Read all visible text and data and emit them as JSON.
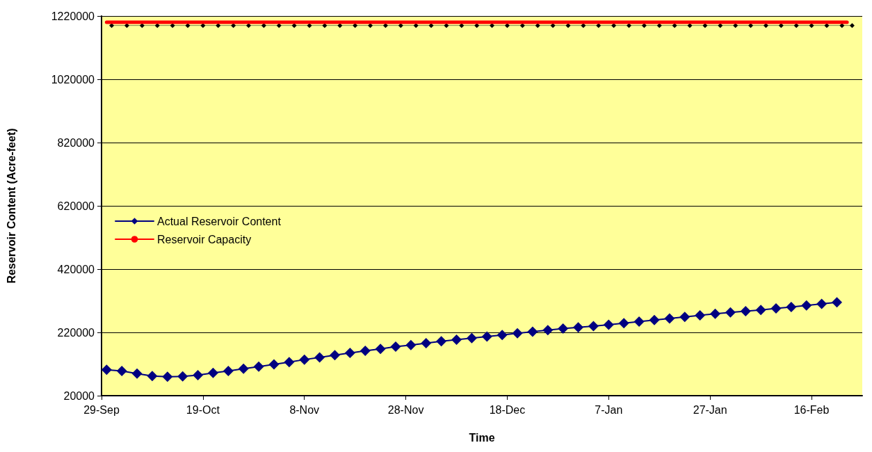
{
  "chart_data": {
    "type": "line",
    "xlabel": "Time",
    "ylabel": "Reservoir Content (Acre-feet)",
    "x": [
      "2000-09-30",
      "2000-10-03",
      "2000-10-06",
      "2000-10-09",
      "2000-10-12",
      "2000-10-15",
      "2000-10-18",
      "2000-10-21",
      "2000-10-24",
      "2000-10-27",
      "2000-10-30",
      "2000-11-02",
      "2000-11-05",
      "2000-11-08",
      "2000-11-11",
      "2000-11-14",
      "2000-11-17",
      "2000-11-20",
      "2000-11-23",
      "2000-11-26",
      "2000-11-29",
      "2000-12-02",
      "2000-12-05",
      "2000-12-08",
      "2000-12-11",
      "2000-12-14",
      "2000-12-17",
      "2000-12-20",
      "2000-12-23",
      "2000-12-26",
      "2000-12-29",
      "2001-01-01",
      "2001-01-04",
      "2001-01-07",
      "2001-01-10",
      "2001-01-13",
      "2001-01-16",
      "2001-01-19",
      "2001-01-22",
      "2001-01-25",
      "2001-01-28",
      "2001-01-31",
      "2001-02-03",
      "2001-02-06",
      "2001-02-09",
      "2001-02-12",
      "2001-02-15",
      "2001-02-18",
      "2001-02-21"
    ],
    "series": [
      {
        "name": "Actual Reservoir Content",
        "color": "#000080",
        "marker": "diamond",
        "values": [
          102000,
          98000,
          90000,
          82000,
          80000,
          81000,
          85000,
          92000,
          98000,
          105000,
          112000,
          119000,
          126000,
          134000,
          141000,
          148000,
          155000,
          162000,
          168000,
          175000,
          180000,
          186000,
          192000,
          197000,
          202000,
          207000,
          212000,
          217000,
          222000,
          227000,
          232000,
          236000,
          240000,
          244000,
          249000,
          254000,
          259000,
          264000,
          269000,
          274000,
          279000,
          283000,
          287000,
          291000,
          296000,
          300000,
          305000,
          310000,
          315000
        ]
      },
      {
        "name": "Reservoir Capacity",
        "color": "#ff0000",
        "marker": "none",
        "x": [
          "2000-09-30",
          "2001-02-23"
        ],
        "values": [
          1200000,
          1200000
        ]
      },
      {
        "color": "#000000",
        "marker": "diamond",
        "x": [
          "2000-10-01",
          "2000-10-04",
          "2000-10-07",
          "2000-10-10",
          "2000-10-13",
          "2000-10-16",
          "2000-10-19",
          "2000-10-22",
          "2000-10-25",
          "2000-10-28",
          "2000-10-31",
          "2000-11-03",
          "2000-11-06",
          "2000-11-09",
          "2000-11-12",
          "2000-11-15",
          "2000-11-18",
          "2000-11-21",
          "2000-11-24",
          "2000-11-27",
          "2000-11-30",
          "2000-12-03",
          "2000-12-06",
          "2000-12-09",
          "2000-12-12",
          "2000-12-15",
          "2000-12-18",
          "2000-12-21",
          "2000-12-24",
          "2000-12-27",
          "2000-12-30",
          "2001-01-02",
          "2001-01-05",
          "2001-01-08",
          "2001-01-11",
          "2001-01-14",
          "2001-01-17",
          "2001-01-20",
          "2001-01-23",
          "2001-01-26",
          "2001-01-29",
          "2001-02-01",
          "2001-02-04",
          "2001-02-07",
          "2001-02-10",
          "2001-02-13",
          "2001-02-16",
          "2001-02-19",
          "2001-02-22",
          "2001-02-24"
        ],
        "values": [
          1190000,
          1190000,
          1190000,
          1190000,
          1190000,
          1190000,
          1190000,
          1190000,
          1190000,
          1190000,
          1190000,
          1190000,
          1190000,
          1190000,
          1190000,
          1190000,
          1190000,
          1190000,
          1190000,
          1190000,
          1190000,
          1190000,
          1190000,
          1190000,
          1190000,
          1190000,
          1190000,
          1190000,
          1190000,
          1190000,
          1190000,
          1190000,
          1190000,
          1190000,
          1190000,
          1190000,
          1190000,
          1190000,
          1190000,
          1190000,
          1190000,
          1190000,
          1190000,
          1190000,
          1190000,
          1190000,
          1190000,
          1190000,
          1190000,
          1190000
        ]
      }
    ],
    "xlim": [
      "2000-09-29",
      "2001-02-26"
    ],
    "xticks": [
      {
        "value": "2000-09-29",
        "label": "29-Sep"
      },
      {
        "value": "2000-10-19",
        "label": "19-Oct"
      },
      {
        "value": "2000-11-08",
        "label": "8-Nov"
      },
      {
        "value": "2000-11-28",
        "label": "28-Nov"
      },
      {
        "value": "2000-12-18",
        "label": "18-Dec"
      },
      {
        "value": "2001-01-07",
        "label": "7-Jan"
      },
      {
        "value": "2001-01-27",
        "label": "27-Jan"
      },
      {
        "value": "2001-02-16",
        "label": "16-Feb"
      }
    ],
    "ylim": [
      20000,
      1220000
    ],
    "yticks": [
      20000,
      220000,
      420000,
      620000,
      820000,
      1020000,
      1220000
    ],
    "grid": "y",
    "legend": "center left"
  }
}
